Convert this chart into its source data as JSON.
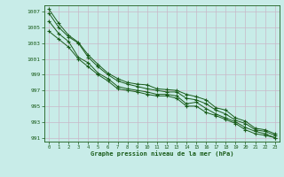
{
  "title": "Graphe pression niveau de la mer (hPa)",
  "background_color": "#c8ece8",
  "grid_color": "#c8b8c8",
  "line_color": "#1a5c1a",
  "text_color": "#1a5c1a",
  "xlim": [
    -0.5,
    23.5
  ],
  "ylim": [
    990.5,
    1007.8
  ],
  "yticks": [
    991,
    993,
    995,
    997,
    999,
    1001,
    1003,
    1005,
    1007
  ],
  "xticks": [
    0,
    1,
    2,
    3,
    4,
    5,
    6,
    7,
    8,
    9,
    10,
    11,
    12,
    13,
    14,
    15,
    16,
    17,
    18,
    19,
    20,
    21,
    22,
    23
  ],
  "series": [
    [
      1007.3,
      1005.5,
      1004.0,
      1003.1,
      1001.5,
      1000.3,
      999.2,
      998.5,
      998.0,
      997.8,
      997.7,
      997.2,
      997.1,
      997.0,
      996.5,
      996.2,
      995.8,
      994.8,
      994.5,
      993.5,
      993.1,
      992.2,
      992.0,
      991.5
    ],
    [
      1006.8,
      1005.0,
      1003.8,
      1003.0,
      1001.2,
      1000.0,
      999.0,
      998.2,
      997.8,
      997.5,
      997.2,
      997.0,
      996.8,
      996.8,
      996.0,
      995.8,
      995.3,
      994.5,
      994.0,
      993.2,
      992.8,
      992.0,
      991.8,
      991.3
    ],
    [
      1005.8,
      1004.2,
      1003.2,
      1001.2,
      1000.5,
      999.2,
      998.5,
      997.5,
      997.2,
      997.0,
      996.8,
      996.5,
      996.5,
      996.3,
      995.3,
      995.5,
      994.7,
      994.0,
      993.5,
      993.0,
      992.3,
      991.8,
      991.5,
      991.0
    ],
    [
      1004.5,
      1003.5,
      1002.5,
      1001.0,
      1000.0,
      999.0,
      998.2,
      997.2,
      997.0,
      996.8,
      996.5,
      996.3,
      996.3,
      996.0,
      995.0,
      995.0,
      994.2,
      993.8,
      993.3,
      992.8,
      992.0,
      991.5,
      991.3,
      991.0
    ]
  ]
}
